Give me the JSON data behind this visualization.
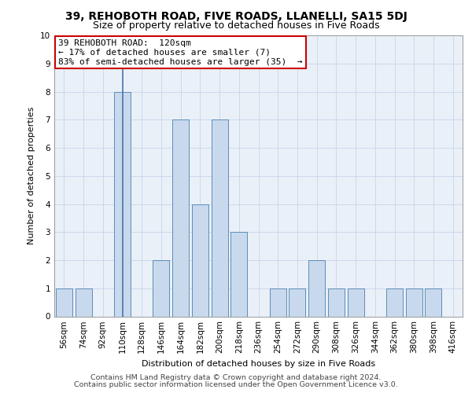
{
  "title1": "39, REHOBOTH ROAD, FIVE ROADS, LLANELLI, SA15 5DJ",
  "title2": "Size of property relative to detached houses in Five Roads",
  "xlabel": "Distribution of detached houses by size in Five Roads",
  "ylabel": "Number of detached properties",
  "categories": [
    "56sqm",
    "74sqm",
    "92sqm",
    "110sqm",
    "128sqm",
    "146sqm",
    "164sqm",
    "182sqm",
    "200sqm",
    "218sqm",
    "236sqm",
    "254sqm",
    "272sqm",
    "290sqm",
    "308sqm",
    "326sqm",
    "344sqm",
    "362sqm",
    "380sqm",
    "398sqm",
    "416sqm"
  ],
  "bar_heights": [
    1,
    1,
    0,
    8,
    0,
    2,
    7,
    4,
    7,
    3,
    0,
    1,
    1,
    2,
    1,
    1,
    0,
    1,
    1,
    1,
    0
  ],
  "bar_color": "#c9d9ed",
  "bar_edge_color": "#5b8db8",
  "grid_color": "#c8d4e8",
  "annotation_text": "39 REHOBOTH ROAD:  120sqm\n← 17% of detached houses are smaller (7)\n83% of semi-detached houses are larger (35)  →",
  "annotation_box_color": "#ffffff",
  "annotation_box_edge_color": "#cc0000",
  "property_bar_index": 3,
  "property_line_color": "#4477aa",
  "ylim": [
    0,
    10
  ],
  "yticks": [
    0,
    1,
    2,
    3,
    4,
    5,
    6,
    7,
    8,
    9,
    10
  ],
  "footer1": "Contains HM Land Registry data © Crown copyright and database right 2024.",
  "footer2": "Contains public sector information licensed under the Open Government Licence v3.0.",
  "bg_color": "#ffffff",
  "plot_bg_color": "#eaf0f8",
  "title1_fontsize": 10,
  "title2_fontsize": 9,
  "axis_label_fontsize": 8,
  "tick_fontsize": 7.5,
  "annotation_fontsize": 8,
  "footer_fontsize": 6.8
}
